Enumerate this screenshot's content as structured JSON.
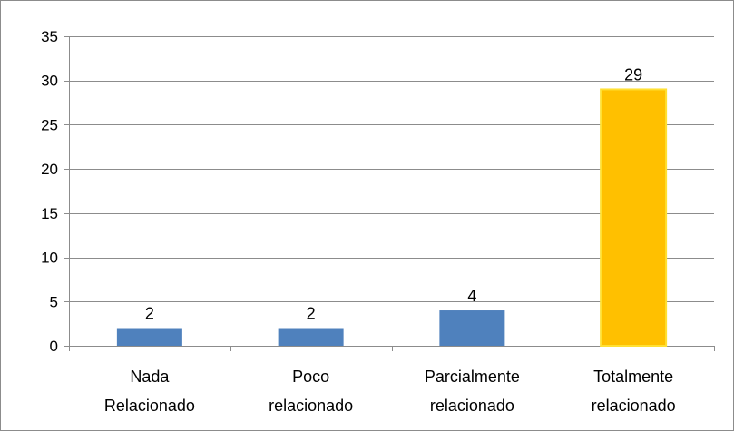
{
  "chart_data": {
    "type": "bar",
    "categories": [
      [
        "Nada",
        "Relacionado"
      ],
      [
        "Poco",
        "relacionado"
      ],
      [
        "Parcialmente",
        "relacionado"
      ],
      [
        "Totalmente",
        "relacionado"
      ]
    ],
    "values": [
      2,
      2,
      4,
      29
    ],
    "data_labels": [
      "2",
      "2",
      "4",
      "29"
    ],
    "bar_colors": [
      "#4f81bd",
      "#4f81bd",
      "#4f81bd",
      "#ffc000"
    ],
    "highlight_border_color": "#ffe033",
    "ylim": [
      0,
      35
    ],
    "y_ticks": [
      0,
      5,
      10,
      15,
      20,
      25,
      30,
      35
    ],
    "y_tick_labels": [
      "0",
      "5",
      "10",
      "15",
      "20",
      "25",
      "30",
      "35"
    ],
    "grid": true,
    "legend": "none",
    "title": "",
    "xlabel": "",
    "ylabel": ""
  }
}
